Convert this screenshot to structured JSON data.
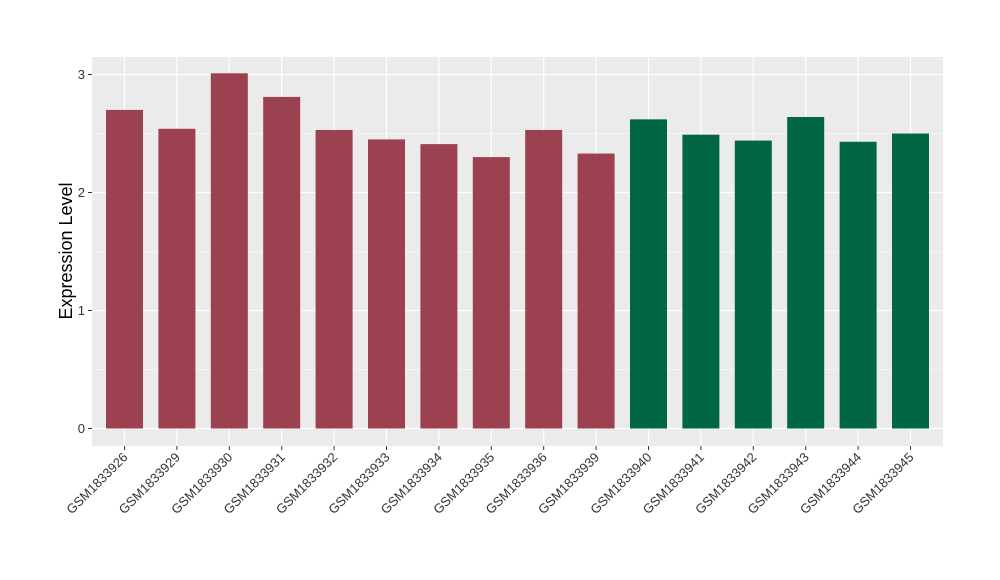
{
  "chart_data": {
    "type": "bar",
    "title": "",
    "xlabel": "",
    "ylabel": "Expression Level",
    "ylim": [
      0,
      3.15
    ],
    "yticks": [
      0,
      1,
      2,
      3
    ],
    "grid": true,
    "categories": [
      "GSM1833926",
      "GSM1833929",
      "GSM1833930",
      "GSM1833931",
      "GSM1833932",
      "GSM1833933",
      "GSM1833934",
      "GSM1833935",
      "GSM1833936",
      "GSM1833939",
      "GSM1833940",
      "GSM1833941",
      "GSM1833942",
      "GSM1833943",
      "GSM1833944",
      "GSM1833945"
    ],
    "values": [
      2.7,
      2.54,
      3.01,
      2.81,
      2.53,
      2.45,
      2.41,
      2.3,
      2.53,
      2.33,
      2.62,
      2.49,
      2.44,
      2.64,
      2.43,
      2.5
    ],
    "bar_colors": [
      "#9b4150",
      "#9b4150",
      "#9b4150",
      "#9b4150",
      "#9b4150",
      "#9b4150",
      "#9b4150",
      "#9b4150",
      "#9b4150",
      "#9b4150",
      "#006644",
      "#006644",
      "#006644",
      "#006644",
      "#006644",
      "#006644"
    ],
    "panel_background": "#ebebeb",
    "grid_color": "#ffffff"
  }
}
